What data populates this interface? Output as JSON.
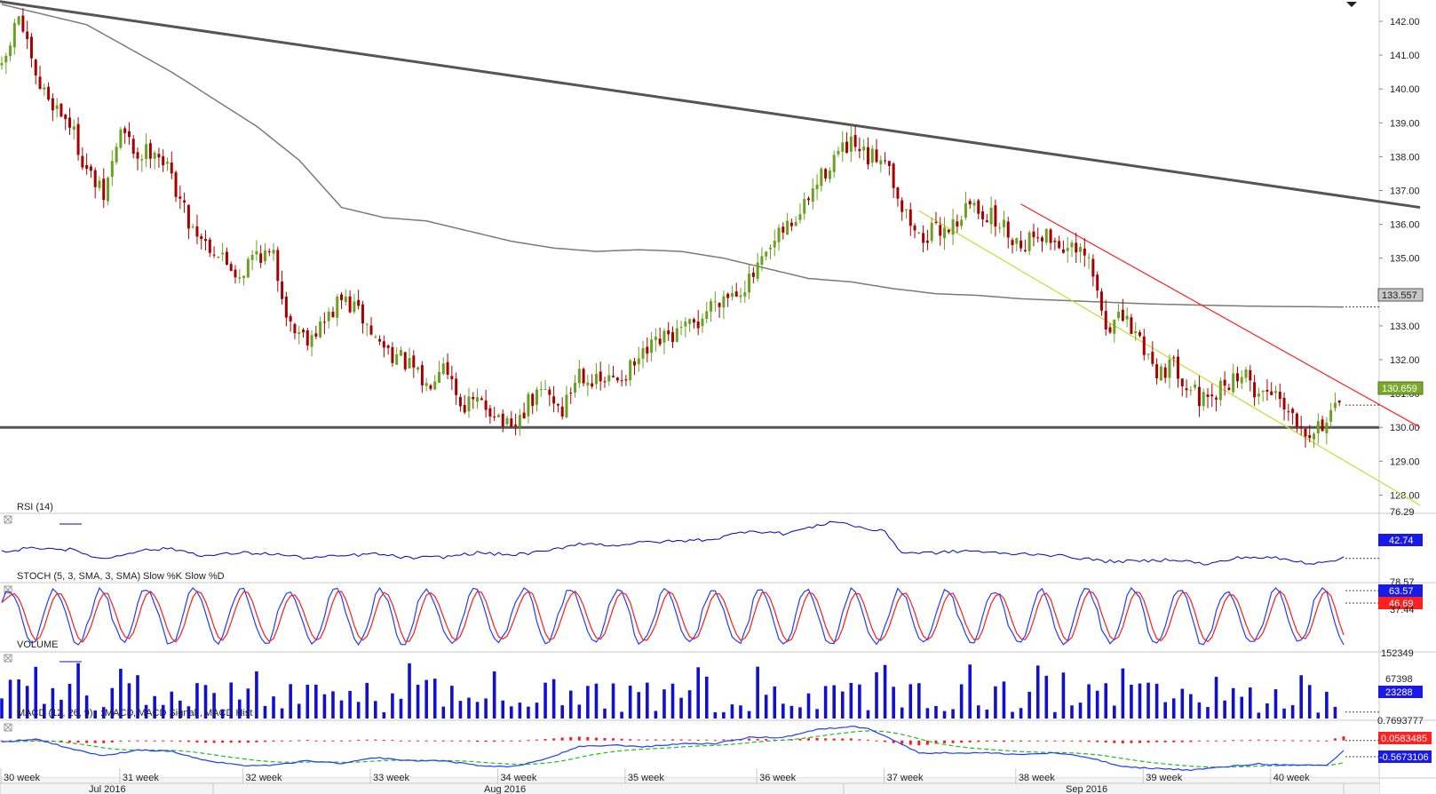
{
  "colors": {
    "up": "#6aa121",
    "down": "#a80000",
    "ma": "#7a7a7a",
    "trendline": "#555555",
    "channel_upper": "#ff2020",
    "channel_lower": "#c8dc30",
    "rsi": "#0000cc",
    "stoch_k": "#1f3cff",
    "stoch_d": "#ff1a1a",
    "volume": "#1010d0",
    "macd": "#1f3cff",
    "macd_signal": "#22bb22",
    "macd_hist": "#ff1a1a"
  },
  "chart_data": [
    {
      "type": "candlestick",
      "pane": "price",
      "y_ticks": [
        "142.00",
        "141.00",
        "140.00",
        "139.00",
        "138.00",
        "137.00",
        "136.00",
        "135.00",
        "134.00",
        "133.00",
        "132.00",
        "131.00",
        "130.00",
        "129.00",
        "128.00"
      ],
      "ylim": [
        127.5,
        142.4
      ],
      "last_price": "130.659",
      "ma_last": "133.557",
      "close_path": [
        [
          0,
          140.5
        ],
        [
          4,
          142.2
        ],
        [
          8,
          140.2
        ],
        [
          12,
          139.6
        ],
        [
          16,
          139.0
        ],
        [
          20,
          137.6
        ],
        [
          24,
          136.8
        ],
        [
          28,
          138.8
        ],
        [
          32,
          138.0
        ],
        [
          36,
          138.3
        ],
        [
          40,
          137.4
        ],
        [
          44,
          136.1
        ],
        [
          48,
          135.5
        ],
        [
          52,
          135.0
        ],
        [
          56,
          134.5
        ],
        [
          60,
          135.2
        ],
        [
          64,
          135.0
        ],
        [
          68,
          133.0
        ],
        [
          72,
          132.7
        ],
        [
          76,
          133.1
        ],
        [
          80,
          133.8
        ],
        [
          84,
          133.4
        ],
        [
          88,
          132.6
        ],
        [
          92,
          132.2
        ],
        [
          96,
          131.8
        ],
        [
          100,
          131.2
        ],
        [
          104,
          132.1
        ],
        [
          108,
          130.7
        ],
        [
          112,
          130.7
        ],
        [
          116,
          130.5
        ],
        [
          120,
          129.8
        ],
        [
          124,
          130.7
        ],
        [
          128,
          131.1
        ],
        [
          132,
          130.5
        ],
        [
          136,
          131.7
        ],
        [
          140,
          131.3
        ],
        [
          144,
          131.4
        ],
        [
          148,
          131.7
        ],
        [
          152,
          132.2
        ],
        [
          156,
          132.6
        ],
        [
          160,
          132.8
        ],
        [
          164,
          133.1
        ],
        [
          168,
          133.8
        ],
        [
          172,
          134.0
        ],
        [
          176,
          134.3
        ],
        [
          180,
          135.0
        ],
        [
          184,
          135.8
        ],
        [
          188,
          136.3
        ],
        [
          192,
          137.2
        ],
        [
          196,
          138.0
        ],
        [
          200,
          138.3
        ],
        [
          204,
          137.9
        ],
        [
          208,
          138.1
        ],
        [
          212,
          136.5
        ],
        [
          216,
          135.6
        ],
        [
          220,
          135.8
        ],
        [
          224,
          136.0
        ],
        [
          228,
          136.6
        ],
        [
          232,
          136.3
        ],
        [
          236,
          135.9
        ],
        [
          240,
          135.4
        ],
        [
          244,
          135.8
        ],
        [
          248,
          135.5
        ],
        [
          252,
          135.2
        ],
        [
          256,
          134.9
        ],
        [
          260,
          133.0
        ],
        [
          264,
          133.2
        ],
        [
          268,
          132.6
        ],
        [
          272,
          131.7
        ],
        [
          276,
          131.8
        ],
        [
          280,
          131.2
        ],
        [
          284,
          130.6
        ],
        [
          288,
          131.3
        ],
        [
          292,
          131.6
        ],
        [
          296,
          131.0
        ],
        [
          300,
          131.1
        ],
        [
          304,
          130.4
        ],
        [
          308,
          129.9
        ],
        [
          312,
          130.2
        ],
        [
          316,
          130.66
        ]
      ],
      "ma_path": [
        [
          0,
          142.5
        ],
        [
          20,
          141.9
        ],
        [
          40,
          140.5
        ],
        [
          60,
          138.9
        ],
        [
          70,
          137.9
        ],
        [
          80,
          136.5
        ],
        [
          90,
          136.2
        ],
        [
          100,
          136.1
        ],
        [
          110,
          135.8
        ],
        [
          120,
          135.5
        ],
        [
          130,
          135.3
        ],
        [
          140,
          135.2
        ],
        [
          150,
          135.25
        ],
        [
          160,
          135.2
        ],
        [
          170,
          135.0
        ],
        [
          180,
          134.7
        ],
        [
          190,
          134.4
        ],
        [
          200,
          134.3
        ],
        [
          210,
          134.1
        ],
        [
          220,
          133.95
        ],
        [
          230,
          133.9
        ],
        [
          240,
          133.8
        ],
        [
          250,
          133.75
        ],
        [
          260,
          133.7
        ],
        [
          270,
          133.65
        ],
        [
          280,
          133.62
        ],
        [
          295,
          133.58
        ],
        [
          316,
          133.557
        ]
      ],
      "trendline": {
        "from": [
          -4,
          142.65
        ],
        "to": [
          334,
          136.5
        ]
      },
      "support_level": 130.0,
      "channel_upper": {
        "from": [
          240,
          136.6
        ],
        "to": [
          334,
          130.0
        ]
      },
      "channel_lower": {
        "from": [
          216,
          136.4
        ],
        "to": [
          334,
          127.7
        ]
      }
    },
    {
      "type": "line",
      "pane": "rsi",
      "title": "RSI (14)",
      "y_ticks": [
        "76.29"
      ],
      "last_value": "42.74",
      "ylim": [
        20,
        85
      ],
      "path": [
        [
          0,
          49
        ],
        [
          8,
          53
        ],
        [
          16,
          51
        ],
        [
          24,
          42
        ],
        [
          32,
          50
        ],
        [
          40,
          52
        ],
        [
          48,
          45
        ],
        [
          56,
          48
        ],
        [
          64,
          47
        ],
        [
          72,
          43
        ],
        [
          80,
          45
        ],
        [
          88,
          47
        ],
        [
          96,
          43
        ],
        [
          104,
          44
        ],
        [
          112,
          48
        ],
        [
          120,
          46
        ],
        [
          128,
          49
        ],
        [
          136,
          57
        ],
        [
          144,
          55
        ],
        [
          152,
          58
        ],
        [
          160,
          59
        ],
        [
          168,
          61
        ],
        [
          176,
          69
        ],
        [
          184,
          66
        ],
        [
          192,
          73
        ],
        [
          196,
          78
        ],
        [
          200,
          74
        ],
        [
          204,
          70
        ],
        [
          208,
          68
        ],
        [
          212,
          48
        ],
        [
          220,
          48
        ],
        [
          228,
          50
        ],
        [
          236,
          47
        ],
        [
          244,
          47
        ],
        [
          252,
          44
        ],
        [
          260,
          40
        ],
        [
          268,
          40
        ],
        [
          276,
          42
        ],
        [
          284,
          37
        ],
        [
          292,
          44
        ],
        [
          300,
          43
        ],
        [
          308,
          38
        ],
        [
          316,
          42.74
        ]
      ]
    },
    {
      "type": "line",
      "pane": "stoch",
      "title": "STOCH (5, 3, SMA, 3, SMA)",
      "series": [
        {
          "name": "Slow %K"
        },
        {
          "name": "Slow %D"
        }
      ],
      "y_ticks": [
        "78.57",
        "37.44"
      ],
      "last_k": "63.57",
      "last_d": "46.69",
      "ylim": [
        0,
        100
      ]
    },
    {
      "type": "bar",
      "pane": "volume",
      "title": "VOLUME",
      "y_ticks": [
        "152349",
        "67398"
      ],
      "last_value": "23288",
      "ylim": [
        0,
        230000
      ]
    },
    {
      "type": "line",
      "pane": "macd",
      "title": "MACD (12, 26, 9)",
      "series": [
        {
          "name": "MACD"
        },
        {
          "name": "MACD Signal"
        },
        {
          "name": "MACD Hist"
        }
      ],
      "y_ticks": [
        "0.7693777"
      ],
      "last_hist": "0.0583485",
      "last_macd": "-0.5673106",
      "ylim": [
        -2.2,
        1.4
      ],
      "macd_path": [
        [
          0,
          0.0
        ],
        [
          8,
          0.2
        ],
        [
          16,
          -0.4
        ],
        [
          24,
          -0.9
        ],
        [
          32,
          -0.5
        ],
        [
          40,
          -0.6
        ],
        [
          48,
          -1.2
        ],
        [
          56,
          -1.5
        ],
        [
          64,
          -1.5
        ],
        [
          72,
          -1.2
        ],
        [
          80,
          -1.4
        ],
        [
          88,
          -1.0
        ],
        [
          96,
          -1.2
        ],
        [
          104,
          -1.2
        ],
        [
          112,
          -1.5
        ],
        [
          120,
          -1.6
        ],
        [
          128,
          -1.1
        ],
        [
          136,
          -0.3
        ],
        [
          144,
          -0.2
        ],
        [
          152,
          -0.3
        ],
        [
          160,
          -0.1
        ],
        [
          168,
          -0.1
        ],
        [
          176,
          0.3
        ],
        [
          184,
          0.3
        ],
        [
          192,
          0.8
        ],
        [
          200,
          1.0
        ],
        [
          204,
          0.9
        ],
        [
          208,
          0.4
        ],
        [
          216,
          -0.7
        ],
        [
          224,
          -0.7
        ],
        [
          232,
          -0.7
        ],
        [
          240,
          -0.8
        ],
        [
          248,
          -0.7
        ],
        [
          256,
          -1.0
        ],
        [
          264,
          -1.6
        ],
        [
          272,
          -1.7
        ],
        [
          280,
          -1.8
        ],
        [
          288,
          -1.6
        ],
        [
          296,
          -1.4
        ],
        [
          304,
          -1.5
        ],
        [
          312,
          -1.5
        ],
        [
          316,
          -0.5673
        ]
      ]
    }
  ],
  "x_axis": {
    "week_labels": [
      "30 week",
      "31 week",
      "32 week",
      "33 week",
      "34 week",
      "35 week",
      "36 week",
      "37 week",
      "38 week",
      "39 week",
      "40 week"
    ],
    "month_labels": [
      "Jul 2016",
      "Aug 2016",
      "Sep 2016"
    ]
  }
}
